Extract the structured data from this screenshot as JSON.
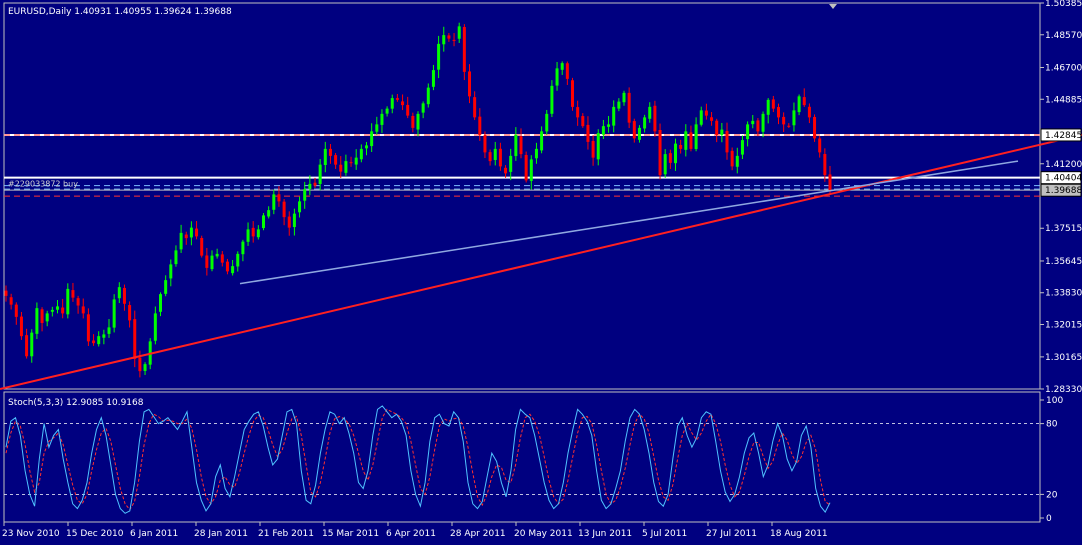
{
  "window": {
    "header": "EURUSD,Daily  1.40931 1.40955 1.39624 1.39688",
    "symbol": "EURUSD",
    "timeframe": "Daily"
  },
  "colors": {
    "background": "#000080",
    "bull_candle": "#00ff00",
    "bear_candle": "#ff0000",
    "grid": "#ffffff",
    "trendline_red": "#ff2020",
    "trendline_blue": "#8fa8e0",
    "stoch_main": "#4fc3ff",
    "stoch_signal": "#ff3030"
  },
  "chart_data": [
    {
      "type": "line",
      "name": "price",
      "y_axis_ticks": [
        "1.50385",
        "1.48570",
        "1.46700",
        "1.44885",
        "1.42845",
        "1.41200",
        "1.40404",
        "1.39688",
        "1.37515",
        "1.35645",
        "1.33830",
        "1.32015",
        "1.30165",
        "1.28330"
      ],
      "x_axis_ticks": [
        "23 Nov 2010",
        "15 Dec 2010",
        "6 Jan 2011",
        "28 Jan 2011",
        "21 Feb 2011",
        "15 Mar 2011",
        "6 Apr 2011",
        "28 Apr 2011",
        "20 May 2011",
        "13 Jun 2011",
        "5 Jul 2011",
        "27 Jul 2011",
        "18 Aug 2011"
      ],
      "ylim": [
        1.2833,
        1.50385
      ],
      "current_price": "1.39688",
      "order_label": "#229033872 buy",
      "horizontal_levels": [
        {
          "value": 1.42845,
          "style": "solid",
          "color": "#ffffff",
          "label": "1.42845"
        },
        {
          "value": 1.40404,
          "style": "solid",
          "color": "#ffffff",
          "label": "1.40404"
        },
        {
          "value": 1.42845,
          "style": "dash",
          "color": "#ff3030"
        },
        {
          "value": 1.3935,
          "style": "dash",
          "color": "#ff3030"
        },
        {
          "value": 1.3995,
          "style": "dash",
          "color": "#7fbfff"
        },
        {
          "value": 1.3975,
          "style": "dash",
          "color": "#7fbfff"
        },
        {
          "value": 1.3969,
          "style": "solid",
          "color": "#c0c0c0"
        }
      ],
      "trendlines": [
        {
          "name": "red-support",
          "points": [
            [
              0,
              1.2833
            ],
            [
              1082,
              1.4285
            ]
          ]
        },
        {
          "name": "blue-trend",
          "points": [
            [
              240,
              1.3435
            ],
            [
              1018,
              1.4135
            ]
          ]
        }
      ],
      "closes": [
        1.3365,
        1.3315,
        1.3245,
        1.3135,
        1.302,
        1.3155,
        1.3295,
        1.321,
        1.3265,
        1.3285,
        1.3305,
        1.3265,
        1.3405,
        1.3355,
        1.331,
        1.3265,
        1.3105,
        1.3095,
        1.3135,
        1.3145,
        1.3185,
        1.3345,
        1.3415,
        1.332,
        1.3225,
        1.3005,
        1.2935,
        1.2975,
        1.3105,
        1.3265,
        1.3375,
        1.3455,
        1.3545,
        1.3625,
        1.3725,
        1.3695,
        1.3755,
        1.3705,
        1.3595,
        1.3525,
        1.3595,
        1.3605,
        1.3555,
        1.3505,
        1.3535,
        1.3605,
        1.3675,
        1.3745,
        1.3705,
        1.3745,
        1.3825,
        1.3855,
        1.3945,
        1.3905,
        1.3815,
        1.3755,
        1.3835,
        1.3905,
        1.3975,
        1.4005,
        1.3995,
        1.4115,
        1.4205,
        1.4165,
        1.4115,
        1.4075,
        1.4135,
        1.4125,
        1.4155,
        1.4205,
        1.4225,
        1.4305,
        1.4345,
        1.4405,
        1.4435,
        1.4495,
        1.4485,
        1.4455,
        1.4395,
        1.4325,
        1.4405,
        1.4465,
        1.4555,
        1.4655,
        1.4805,
        1.4855,
        1.4835,
        1.4825,
        1.4905,
        1.4645,
        1.4505,
        1.4385,
        1.4285,
        1.4185,
        1.4135,
        1.4205,
        1.4105,
        1.4065,
        1.4165,
        1.4285,
        1.4175,
        1.4025,
        1.4145,
        1.4205,
        1.4305,
        1.4405,
        1.4565,
        1.4665,
        1.4695,
        1.4605,
        1.4445,
        1.4385,
        1.4335,
        1.4245,
        1.4155,
        1.4295,
        1.4335,
        1.4345,
        1.4445,
        1.4475,
        1.4525,
        1.4355,
        1.4265,
        1.4325,
        1.4385,
        1.4445,
        1.4305,
        1.4055,
        1.4175,
        1.4125,
        1.4235,
        1.4205,
        1.4305,
        1.4205,
        1.4345,
        1.4425,
        1.4395,
        1.4365,
        1.4285,
        1.4315,
        1.4185,
        1.4105,
        1.4165,
        1.4255,
        1.4345,
        1.4365,
        1.4305,
        1.4405,
        1.4485,
        1.4435,
        1.4385,
        1.4345,
        1.4335,
        1.4425,
        1.4505,
        1.4455,
        1.4385,
        1.4265,
        1.4185,
        1.4055,
        1.3969
      ],
      "marker": {
        "x": 833,
        "shape": "triangle-down"
      }
    },
    {
      "type": "line",
      "name": "stochastic",
      "header": "Stoch(5,3,3) 12.9085 10.9168",
      "params": "5,3,3",
      "main_value": "12.9085",
      "signal_value": "10.9168",
      "y_axis_ticks": [
        "100",
        "80",
        "20",
        "0"
      ],
      "levels": [
        80,
        20
      ],
      "ylim": [
        0,
        100
      ],
      "main": [
        60,
        82,
        85,
        70,
        40,
        20,
        10,
        50,
        80,
        60,
        70,
        75,
        50,
        30,
        12,
        8,
        15,
        30,
        55,
        75,
        85,
        70,
        45,
        20,
        8,
        4,
        6,
        30,
        65,
        90,
        92,
        86,
        80,
        82,
        85,
        80,
        75,
        82,
        90,
        60,
        30,
        15,
        6,
        12,
        35,
        45,
        25,
        18,
        35,
        55,
        75,
        82,
        88,
        90,
        78,
        60,
        45,
        50,
        70,
        90,
        92,
        80,
        40,
        15,
        12,
        28,
        55,
        75,
        90,
        88,
        80,
        85,
        72,
        55,
        30,
        25,
        40,
        70,
        92,
        95,
        90,
        85,
        88,
        82,
        70,
        40,
        20,
        10,
        30,
        65,
        85,
        88,
        80,
        78,
        90,
        85,
        65,
        30,
        12,
        8,
        14,
        35,
        55,
        48,
        30,
        18,
        40,
        75,
        92,
        88,
        85,
        70,
        50,
        30,
        15,
        8,
        12,
        30,
        55,
        75,
        92,
        88,
        82,
        70,
        40,
        15,
        8,
        12,
        25,
        40,
        65,
        85,
        92,
        88,
        75,
        55,
        30,
        14,
        10,
        20,
        50,
        78,
        85,
        70,
        60,
        68,
        85,
        90,
        88,
        65,
        40,
        22,
        14,
        20,
        35,
        55,
        68,
        72,
        55,
        35,
        45,
        65,
        80,
        70,
        50,
        40,
        48,
        70,
        78,
        60,
        25,
        10,
        5,
        13
      ],
      "signal": [
        55,
        72,
        82,
        78,
        62,
        40,
        22,
        30,
        55,
        65,
        68,
        72,
        62,
        45,
        28,
        15,
        12,
        20,
        40,
        58,
        72,
        76,
        65,
        45,
        25,
        12,
        7,
        14,
        35,
        62,
        80,
        88,
        86,
        82,
        83,
        82,
        80,
        80,
        84,
        76,
        58,
        35,
        18,
        12,
        18,
        32,
        35,
        28,
        26,
        38,
        55,
        70,
        82,
        87,
        85,
        75,
        62,
        52,
        58,
        72,
        84,
        86,
        70,
        45,
        22,
        18,
        30,
        50,
        72,
        84,
        86,
        84,
        80,
        70,
        55,
        40,
        32,
        45,
        65,
        85,
        92,
        90,
        88,
        85,
        80,
        65,
        45,
        25,
        20,
        35,
        58,
        78,
        84,
        82,
        84,
        85,
        78,
        60,
        38,
        18,
        11,
        20,
        35,
        45,
        43,
        32,
        30,
        45,
        68,
        85,
        88,
        82,
        70,
        52,
        32,
        18,
        12,
        16,
        32,
        52,
        72,
        85,
        86,
        80,
        62,
        40,
        20,
        12,
        15,
        26,
        42,
        62,
        80,
        88,
        84,
        72,
        52,
        32,
        18,
        15,
        28,
        50,
        70,
        80,
        72,
        66,
        72,
        82,
        88,
        80,
        65,
        45,
        28,
        18,
        22,
        36,
        52,
        64,
        64,
        52,
        42,
        48,
        62,
        72,
        66,
        54,
        46,
        52,
        64,
        70,
        58,
        32,
        14,
        11
      ]
    }
  ]
}
